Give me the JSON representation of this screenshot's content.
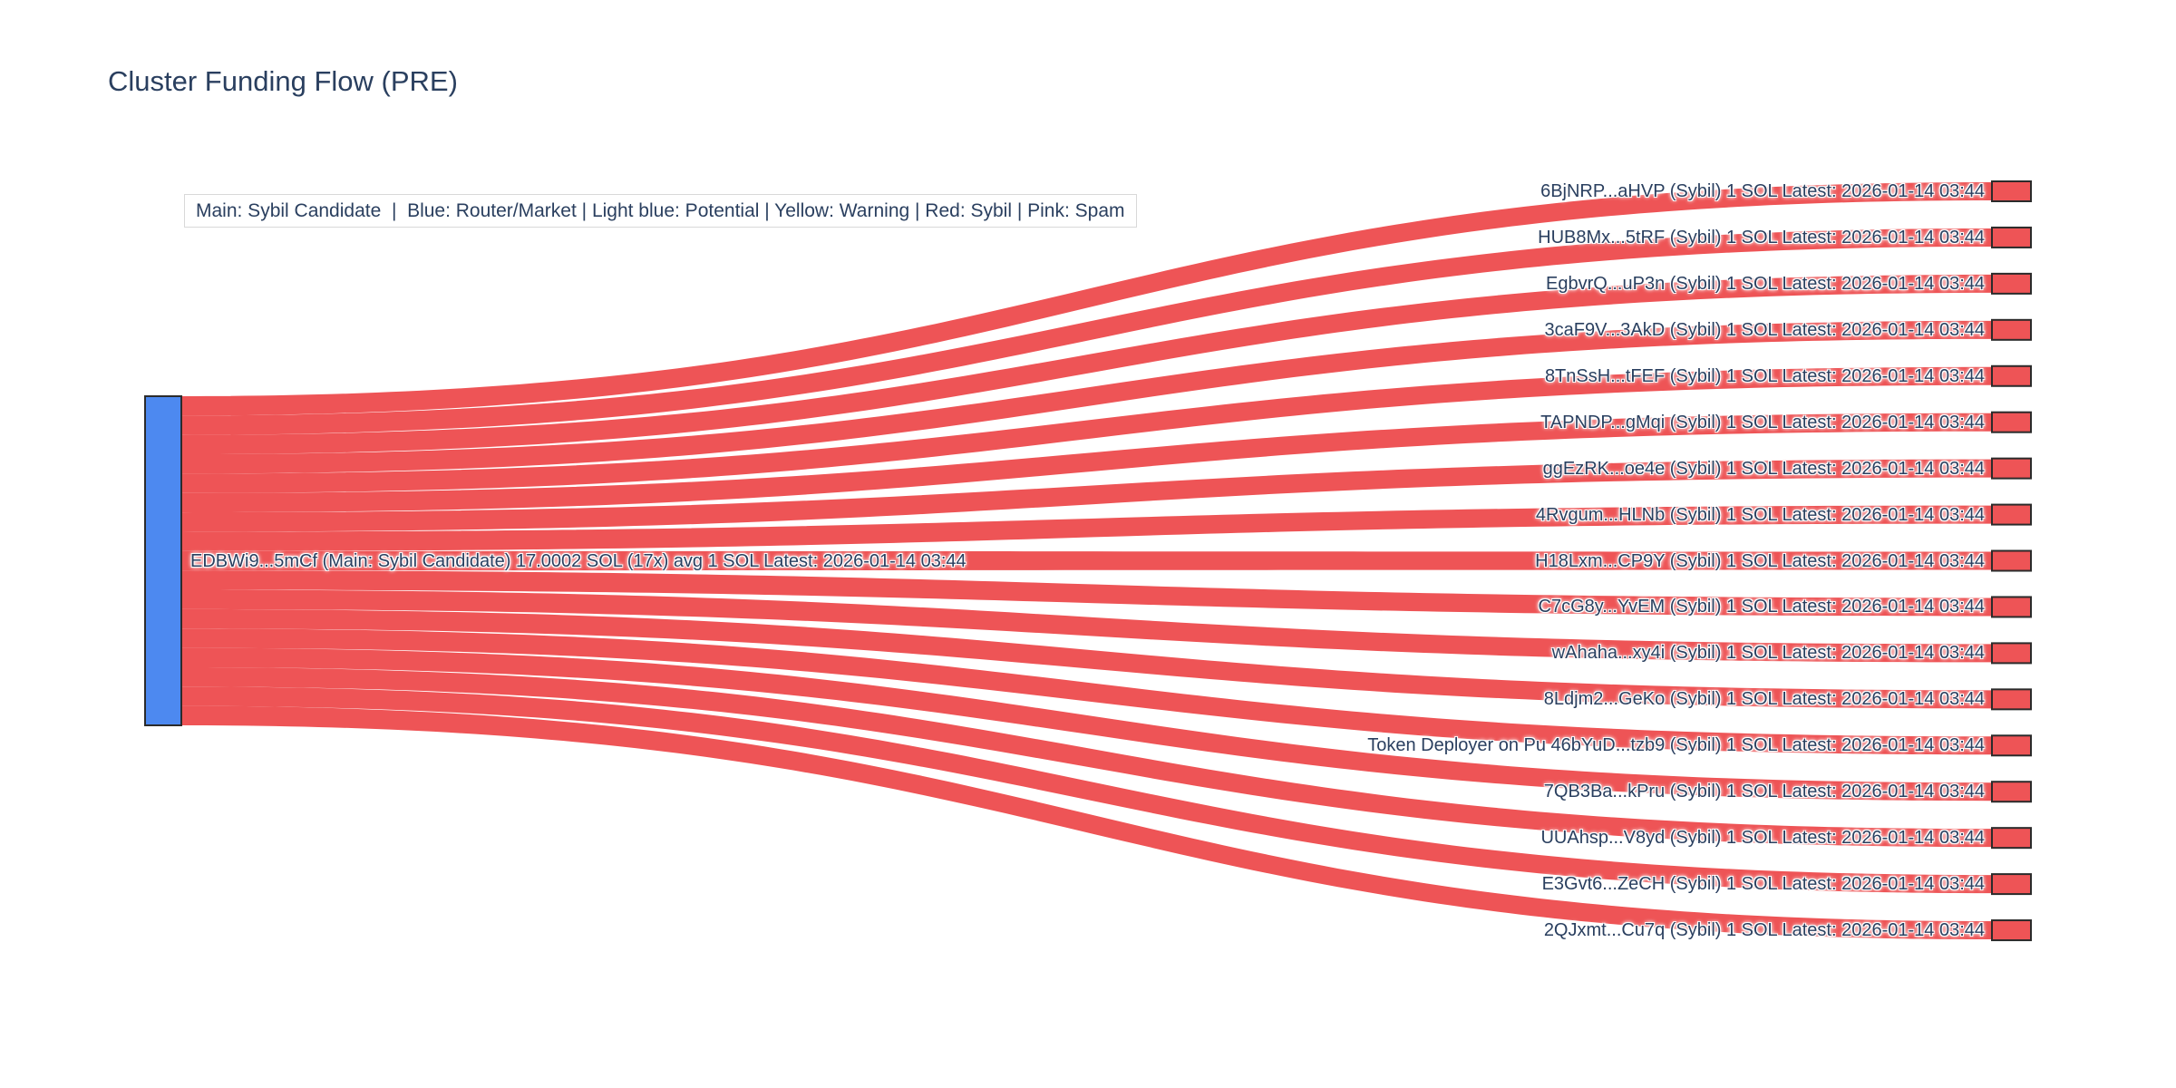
{
  "title": "Cluster Funding Flow (PRE)",
  "legend": {
    "text": "Main: Sybil Candidate  |  Blue: Router/Market | Light blue: Potential | Yellow: Warning | Red: Sybil | Pink: Spam"
  },
  "colors": {
    "background": "#ffffff",
    "title_text": "#2a3f5f",
    "label_text": "#2a3f5f",
    "main_node_fill": "#4D89F0",
    "sybil_node_fill": "#EE5456",
    "link_fill": "#EE5456",
    "node_border": "#2b2b2b",
    "legend_border": "#d9d9d9",
    "legend_bg": "#ffffff"
  },
  "chart_data": {
    "type": "sankey",
    "title": "Cluster Funding Flow (PRE)",
    "units": "SOL",
    "orientation": "horizontal",
    "source_node": {
      "label": "EDBWi9...5mCf (Main: Sybil Candidate) 17.0002 SOL (17x) avg 1 SOL Latest: 2026-01-14 03:44",
      "short_address": "EDBWi9...5mCf",
      "classification": "Main: Sybil Candidate",
      "total_out_sol": 17.0002,
      "tx_count_label": "17x",
      "avg_sol": 1,
      "latest": "2026-01-14 03:44",
      "color": "#4D89F0"
    },
    "link_value_each_sol": 1,
    "targets": [
      {
        "label": "6BjNRP...aHVP (Sybil) 1 SOL Latest: 2026-01-14 03:44",
        "short_address": "6BjNRP...aHVP",
        "classification": "Sybil",
        "value": 1,
        "latest": "2026-01-14 03:44"
      },
      {
        "label": "HUB8Mx...5tRF (Sybil) 1 SOL Latest: 2026-01-14 03:44",
        "short_address": "HUB8Mx...5tRF",
        "classification": "Sybil",
        "value": 1,
        "latest": "2026-01-14 03:44"
      },
      {
        "label": "EgbvrQ...uP3n (Sybil) 1 SOL Latest: 2026-01-14 03:44",
        "short_address": "EgbvrQ...uP3n",
        "classification": "Sybil",
        "value": 1,
        "latest": "2026-01-14 03:44"
      },
      {
        "label": "3caF9V...3AkD (Sybil) 1 SOL Latest: 2026-01-14 03:44",
        "short_address": "3caF9V...3AkD",
        "classification": "Sybil",
        "value": 1,
        "latest": "2026-01-14 03:44"
      },
      {
        "label": "8TnSsH...tFEF (Sybil) 1 SOL Latest: 2026-01-14 03:44",
        "short_address": "8TnSsH...tFEF",
        "classification": "Sybil",
        "value": 1,
        "latest": "2026-01-14 03:44"
      },
      {
        "label": "TAPNDP...gMqi (Sybil) 1 SOL Latest: 2026-01-14 03:44",
        "short_address": "TAPNDP...gMqi",
        "classification": "Sybil",
        "value": 1,
        "latest": "2026-01-14 03:44"
      },
      {
        "label": "ggEzRK...oe4e (Sybil) 1 SOL Latest: 2026-01-14 03:44",
        "short_address": "ggEzRK...oe4e",
        "classification": "Sybil",
        "value": 1,
        "latest": "2026-01-14 03:44"
      },
      {
        "label": "4Rvgum...HLNb (Sybil) 1 SOL Latest: 2026-01-14 03:44",
        "short_address": "4Rvgum...HLNb",
        "classification": "Sybil",
        "value": 1,
        "latest": "2026-01-14 03:44"
      },
      {
        "label": "H18Lxm...CP9Y (Sybil) 1 SOL Latest: 2026-01-14 03:44",
        "short_address": "H18Lxm...CP9Y",
        "classification": "Sybil",
        "value": 1,
        "latest": "2026-01-14 03:44"
      },
      {
        "label": "C7cG8y...YvEM (Sybil) 1 SOL Latest: 2026-01-14 03:44",
        "short_address": "C7cG8y...YvEM",
        "classification": "Sybil",
        "value": 1,
        "latest": "2026-01-14 03:44"
      },
      {
        "label": "wAhaha...xy4i (Sybil) 1 SOL Latest: 2026-01-14 03:44",
        "short_address": "wAhaha...xy4i",
        "classification": "Sybil",
        "value": 1,
        "latest": "2026-01-14 03:44"
      },
      {
        "label": "8Ldjm2...GeKo (Sybil) 1 SOL Latest: 2026-01-14 03:44",
        "short_address": "8Ldjm2...GeKo",
        "classification": "Sybil",
        "value": 1,
        "latest": "2026-01-14 03:44"
      },
      {
        "label": "Token Deployer on Pu 46bYuD...tzb9 (Sybil) 1 SOL Latest: 2026-01-14 03:44",
        "short_address": "46bYuD...tzb9",
        "classification": "Sybil",
        "note": "Token Deployer on Pu",
        "value": 1,
        "latest": "2026-01-14 03:44"
      },
      {
        "label": "7QB3Ba...kPru (Sybil) 1 SOL Latest: 2026-01-14 03:44",
        "short_address": "7QB3Ba...kPru",
        "classification": "Sybil",
        "value": 1,
        "latest": "2026-01-14 03:44"
      },
      {
        "label": "UUAhsp...V8yd (Sybil) 1 SOL Latest: 2026-01-14 03:44",
        "short_address": "UUAhsp...V8yd",
        "classification": "Sybil",
        "value": 1,
        "latest": "2026-01-14 03:44"
      },
      {
        "label": "E3Gvt6...ZeCH (Sybil) 1 SOL Latest: 2026-01-14 03:44",
        "short_address": "E3Gvt6...ZeCH",
        "classification": "Sybil",
        "value": 1,
        "latest": "2026-01-14 03:44"
      },
      {
        "label": "2QJxmt...Cu7q (Sybil) 1 SOL Latest: 2026-01-14 03:44",
        "short_address": "2QJxmt...Cu7q",
        "classification": "Sybil",
        "value": 1,
        "latest": "2026-01-14 03:44"
      }
    ]
  }
}
